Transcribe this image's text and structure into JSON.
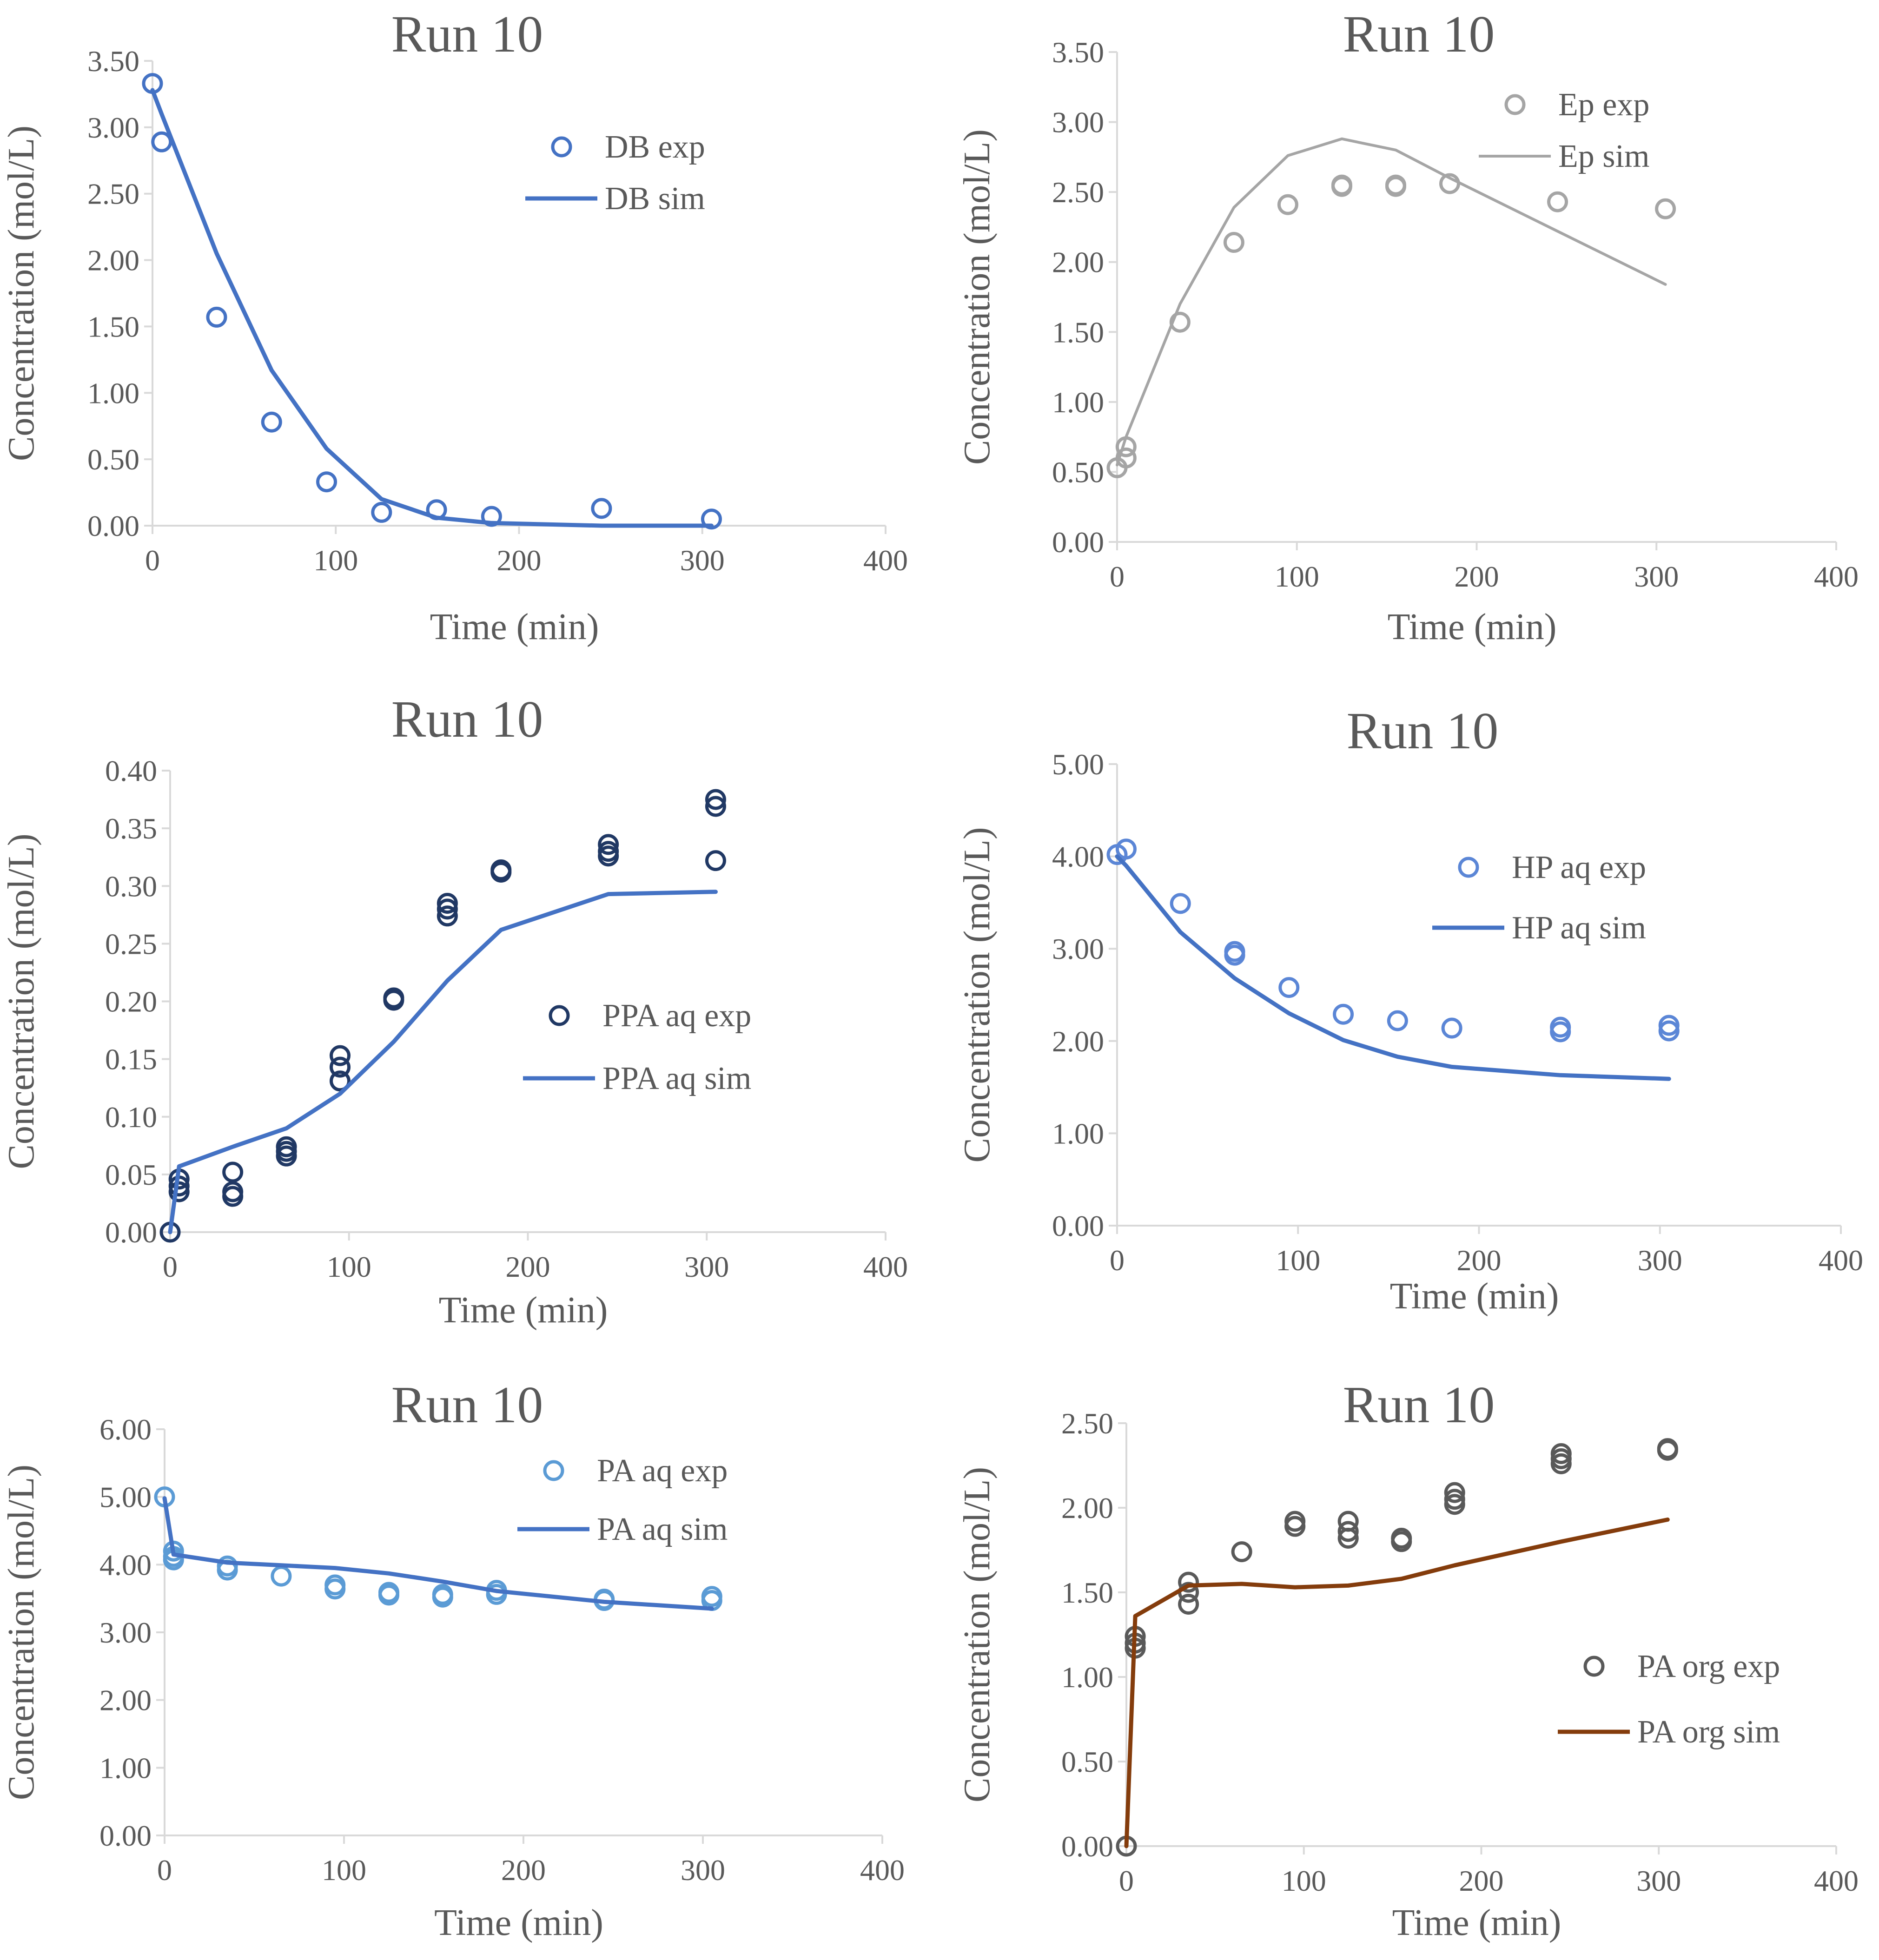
{
  "chart_data": [
    {
      "type": "scatter",
      "title": "Run 10",
      "xlabel": "Time (min)",
      "ylabel": "Concentration (mol/L)",
      "xlim": [
        0,
        400
      ],
      "ylim": [
        0,
        3.5
      ],
      "xticks": [
        "0",
        "100",
        "200",
        "300",
        "400"
      ],
      "yticks": [
        "0.00",
        "0.50",
        "1.00",
        "1.50",
        "2.00",
        "2.50",
        "3.00",
        "3.50"
      ],
      "legend_position": "top-right",
      "series": [
        {
          "name": "DB exp",
          "kind": "markers",
          "color": "#4472C4",
          "x": [
            0,
            5,
            35,
            65,
            95,
            125,
            155,
            185,
            245,
            305
          ],
          "y": [
            3.33,
            2.89,
            1.57,
            0.78,
            0.33,
            0.1,
            0.12,
            0.07,
            0.13,
            0.05
          ]
        },
        {
          "name": "DB sim",
          "kind": "line",
          "color": "#4472C4",
          "x": [
            0,
            5,
            35,
            65,
            95,
            125,
            155,
            185,
            245,
            305
          ],
          "y": [
            3.28,
            3.1,
            2.05,
            1.17,
            0.58,
            0.2,
            0.06,
            0.02,
            0.0,
            0.0
          ]
        }
      ]
    },
    {
      "type": "scatter",
      "title": "Run 10",
      "xlabel": "Time (min)",
      "ylabel": "Concentration (mol/L)",
      "xlim": [
        0,
        400
      ],
      "ylim": [
        0,
        3.5
      ],
      "xticks": [
        "0",
        "100",
        "200",
        "300",
        "400"
      ],
      "yticks": [
        "0.00",
        "0.50",
        "1.00",
        "1.50",
        "2.00",
        "2.50",
        "3.00",
        "3.50"
      ],
      "legend_position": "top-right",
      "series": [
        {
          "name": "Ep exp",
          "kind": "markers",
          "color": "#A5A5A5",
          "x": [
            0,
            5,
            5,
            35,
            65,
            95,
            125,
            125,
            155,
            155,
            185,
            245,
            305
          ],
          "y": [
            0.53,
            0.68,
            0.6,
            1.57,
            2.14,
            2.41,
            2.55,
            2.54,
            2.55,
            2.54,
            2.56,
            2.43,
            2.38
          ]
        },
        {
          "name": "Ep sim",
          "kind": "line",
          "color": "#A5A5A5",
          "x": [
            0,
            5,
            35,
            65,
            95,
            125,
            155,
            185,
            245,
            305
          ],
          "y": [
            0.55,
            0.75,
            1.7,
            2.39,
            2.76,
            2.88,
            2.8,
            2.6,
            2.22,
            1.84
          ]
        }
      ]
    },
    {
      "type": "scatter",
      "title": "Run 10",
      "xlabel": "Time (min)",
      "ylabel": "Concentration (mol/L)",
      "xlim": [
        0,
        400
      ],
      "ylim": [
        0,
        0.4
      ],
      "xticks": [
        "0",
        "100",
        "200",
        "300",
        "400"
      ],
      "yticks": [
        "0.00",
        "0.05",
        "0.10",
        "0.15",
        "0.20",
        "0.25",
        "0.30",
        "0.35",
        "0.40"
      ],
      "legend_position": "right",
      "series": [
        {
          "name": "PPA aq exp",
          "kind": "markers",
          "color": "#203864",
          "x": [
            0,
            5,
            5,
            5,
            35,
            35,
            35,
            65,
            65,
            65,
            95,
            95,
            95,
            125,
            125,
            155,
            155,
            155,
            185,
            185,
            245,
            245,
            245,
            305,
            305,
            305
          ],
          "y": [
            0.0,
            0.046,
            0.04,
            0.035,
            0.052,
            0.035,
            0.031,
            0.074,
            0.07,
            0.066,
            0.153,
            0.143,
            0.131,
            0.203,
            0.201,
            0.285,
            0.28,
            0.274,
            0.314,
            0.312,
            0.336,
            0.33,
            0.326,
            0.375,
            0.369,
            0.322
          ]
        },
        {
          "name": "PPA aq sim",
          "kind": "line",
          "color": "#4472C4",
          "x": [
            0,
            5,
            35,
            65,
            95,
            125,
            155,
            185,
            245,
            305
          ],
          "y": [
            0.0,
            0.057,
            0.074,
            0.09,
            0.12,
            0.165,
            0.218,
            0.262,
            0.293,
            0.295
          ]
        }
      ]
    },
    {
      "type": "scatter",
      "title": "Run 10",
      "xlabel": "Time (min)",
      "ylabel": "Concentration (mol/L)",
      "xlim": [
        0,
        400
      ],
      "ylim": [
        0,
        5
      ],
      "xticks": [
        "0",
        "100",
        "200",
        "300",
        "400"
      ],
      "yticks": [
        "0.00",
        "1.00",
        "2.00",
        "3.00",
        "4.00",
        "5.00"
      ],
      "legend_position": "top-right",
      "series": [
        {
          "name": "HP aq exp",
          "kind": "markers",
          "color": "#5B86D6",
          "x": [
            0,
            5,
            35,
            65,
            65,
            95,
            125,
            155,
            185,
            245,
            245,
            305,
            305
          ],
          "y": [
            4.02,
            4.08,
            3.49,
            2.97,
            2.93,
            2.58,
            2.29,
            2.22,
            2.14,
            2.15,
            2.1,
            2.17,
            2.11
          ]
        },
        {
          "name": "HP aq sim",
          "kind": "line",
          "color": "#4472C4",
          "x": [
            0,
            5,
            35,
            65,
            95,
            125,
            155,
            185,
            245,
            305
          ],
          "y": [
            4.0,
            3.9,
            3.18,
            2.68,
            2.3,
            2.01,
            1.83,
            1.72,
            1.63,
            1.59
          ]
        }
      ]
    },
    {
      "type": "scatter",
      "title": "Run 10",
      "xlabel": "Time (min)",
      "ylabel": "Concentration (mol/L)",
      "xlim": [
        0,
        400
      ],
      "ylim": [
        0,
        6
      ],
      "xticks": [
        "0",
        "100",
        "200",
        "300",
        "400"
      ],
      "yticks": [
        "0.00",
        "1.00",
        "2.00",
        "3.00",
        "4.00",
        "5.00",
        "6.00"
      ],
      "legend_position": "top-right",
      "series": [
        {
          "name": "PA aq exp",
          "kind": "markers",
          "color": "#5B9BD5",
          "x": [
            0,
            5,
            5,
            5,
            35,
            35,
            65,
            95,
            95,
            125,
            125,
            155,
            155,
            185,
            185,
            245,
            245,
            305,
            305
          ],
          "y": [
            5.0,
            4.2,
            4.12,
            4.07,
            3.98,
            3.92,
            3.83,
            3.7,
            3.64,
            3.59,
            3.55,
            3.56,
            3.52,
            3.62,
            3.56,
            3.49,
            3.47,
            3.53,
            3.47
          ]
        },
        {
          "name": "PA aq sim",
          "kind": "line",
          "color": "#4472C4",
          "x": [
            0,
            5,
            35,
            65,
            95,
            125,
            155,
            185,
            245,
            305
          ],
          "y": [
            4.98,
            4.15,
            4.03,
            3.99,
            3.95,
            3.87,
            3.75,
            3.61,
            3.45,
            3.35
          ]
        }
      ]
    },
    {
      "type": "scatter",
      "title": "Run 10",
      "xlabel": "Time (min)",
      "ylabel": "Concentration (mol/L)",
      "xlim": [
        0,
        400
      ],
      "ylim": [
        0,
        2.5
      ],
      "xticks": [
        "0",
        "100",
        "200",
        "300",
        "400"
      ],
      "yticks": [
        "0.00",
        "0.50",
        "1.00",
        "1.50",
        "2.00",
        "2.50"
      ],
      "legend_position": "right",
      "series": [
        {
          "name": "PA org exp",
          "kind": "markers",
          "color": "#595959",
          "x": [
            0,
            5,
            5,
            5,
            35,
            35,
            35,
            65,
            95,
            95,
            125,
            125,
            125,
            155,
            155,
            185,
            185,
            185,
            245,
            245,
            245,
            305,
            305
          ],
          "y": [
            0.0,
            1.24,
            1.2,
            1.17,
            1.56,
            1.5,
            1.43,
            1.74,
            1.92,
            1.89,
            1.92,
            1.86,
            1.82,
            1.82,
            1.8,
            2.09,
            2.05,
            2.02,
            2.32,
            2.29,
            2.26,
            2.35,
            2.34
          ]
        },
        {
          "name": "PA org sim",
          "kind": "line",
          "color": "#843C0C",
          "x": [
            0,
            5,
            35,
            65,
            95,
            125,
            155,
            185,
            245,
            305
          ],
          "y": [
            0.0,
            1.36,
            1.54,
            1.55,
            1.53,
            1.54,
            1.58,
            1.66,
            1.8,
            1.93
          ]
        }
      ]
    }
  ]
}
